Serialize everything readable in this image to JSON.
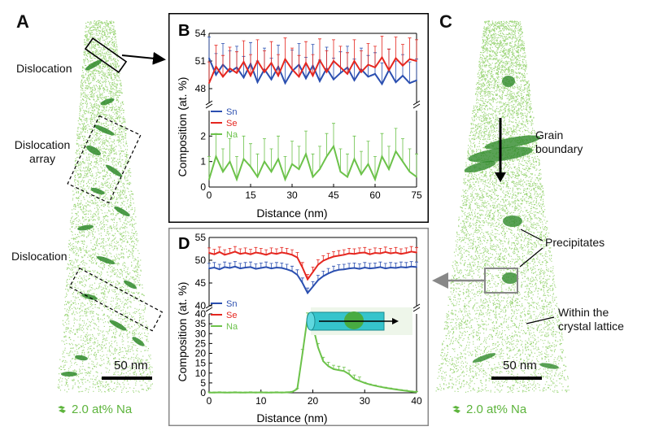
{
  "colors": {
    "sn": "#2b4fb0",
    "se": "#e5261f",
    "na": "#6cc24a",
    "atom": "#8dcf64",
    "dark": "#2f8a2a",
    "border": "#888888"
  },
  "panelA": {
    "letter": "A",
    "ann_dislocation_top": "Dislocation",
    "ann_array_1": "Dislocation",
    "ann_array_2": "array",
    "ann_dislocation_bottom": "Dislocation",
    "scalebar": "50 nm",
    "legend": "2.0 at% Na"
  },
  "panelC": {
    "letter": "C",
    "ann_gb_1": "Grain",
    "ann_gb_2": "boundary",
    "ann_precip": "Precipitates",
    "ann_lattice_1": "Within the",
    "ann_lattice_2": "crystal lattice",
    "scalebar": "50 nm",
    "legend": "2.0 at% Na"
  },
  "chart_data": [
    {
      "type": "line",
      "panel": "B",
      "ylabel": "Composition (at. %)",
      "xlabel": "Distance (nm)",
      "xlim": [
        0,
        75
      ],
      "xticks": [
        "0",
        "15",
        "30",
        "45",
        "60",
        "75"
      ],
      "upper": {
        "ylim": [
          46.5,
          54
        ],
        "yticks": [
          "48",
          "51",
          "54"
        ]
      },
      "lower": {
        "ylim": [
          0,
          3
        ],
        "yticks": [
          "0",
          "1",
          "2"
        ]
      },
      "legend": [
        "Sn",
        "Se",
        "Na"
      ],
      "x": [
        0,
        2.5,
        5,
        7.5,
        10,
        12.5,
        15,
        17.5,
        20,
        22.5,
        25,
        27.5,
        30,
        32.5,
        35,
        37.5,
        40,
        42.5,
        45,
        47.5,
        50,
        52.5,
        55,
        57.5,
        60,
        62.5,
        65,
        67.5,
        70,
        72.5,
        75
      ],
      "series": [
        {
          "name": "Sn",
          "values": [
            51.3,
            49.5,
            50.6,
            49.8,
            50.3,
            49.2,
            50.7,
            48.7,
            50.1,
            49.0,
            50.4,
            48.6,
            49.9,
            50.6,
            49.1,
            50.5,
            48.8,
            50.2,
            49.0,
            49.7,
            50.3,
            48.9,
            50.1,
            49.3,
            49.6,
            48.5,
            50.0,
            48.7,
            49.4,
            48.6,
            48.9
          ]
        },
        {
          "name": "Se",
          "values": [
            48.6,
            50.4,
            49.3,
            50.2,
            49.7,
            50.9,
            49.4,
            51.0,
            49.8,
            50.8,
            49.4,
            51.2,
            50.1,
            49.3,
            50.8,
            49.4,
            51.1,
            49.8,
            51.0,
            50.3,
            49.6,
            51.0,
            49.8,
            50.6,
            50.3,
            51.4,
            50.0,
            51.3,
            50.5,
            51.2,
            51.0
          ]
        },
        {
          "name": "Na",
          "values": [
            0.3,
            1.2,
            0.6,
            1.0,
            0.3,
            1.1,
            0.8,
            0.4,
            1.0,
            0.6,
            1.1,
            0.3,
            0.9,
            0.7,
            1.3,
            0.4,
            0.7,
            1.2,
            1.6,
            0.6,
            0.4,
            1.1,
            0.5,
            0.9,
            0.3,
            1.2,
            0.7,
            1.4,
            1.0,
            0.6,
            0.4
          ]
        }
      ]
    },
    {
      "type": "line",
      "panel": "D",
      "ylabel": "Composition (at. %)",
      "xlabel": "Distance (nm)",
      "xlim": [
        0,
        40
      ],
      "xticks": [
        "0",
        "10",
        "20",
        "30",
        "40"
      ],
      "upper": {
        "ylim": [
          40,
          55
        ],
        "yticks": [
          "40",
          "45",
          "50",
          "55"
        ]
      },
      "lower": {
        "ylim": [
          0,
          40
        ],
        "yticks": [
          "0",
          "5",
          "10",
          "15",
          "20",
          "25",
          "30",
          "35",
          "40"
        ]
      },
      "legend": [
        "Sn",
        "Se",
        "Na"
      ],
      "x": [
        0,
        1,
        2,
        3,
        4,
        5,
        6,
        7,
        8,
        9,
        10,
        11,
        12,
        13,
        14,
        15,
        16,
        17,
        18,
        19,
        20,
        21,
        22,
        23,
        24,
        25,
        26,
        27,
        28,
        29,
        30,
        31,
        32,
        33,
        34,
        35,
        36,
        37,
        38,
        39,
        40
      ],
      "series": [
        {
          "name": "Sn",
          "values": [
            48.2,
            48.4,
            48.0,
            48.5,
            48.3,
            48.6,
            48.2,
            48.4,
            48.5,
            48.1,
            48.3,
            48.5,
            48.2,
            48.4,
            48.3,
            48.0,
            47.6,
            46.8,
            45.0,
            42.8,
            44.2,
            45.6,
            46.5,
            47.1,
            47.6,
            47.9,
            48.0,
            48.2,
            48.3,
            48.1,
            48.4,
            48.2,
            48.3,
            48.5,
            48.2,
            48.4,
            48.3,
            48.5,
            48.4,
            48.6,
            48.5
          ]
        },
        {
          "name": "Se",
          "values": [
            51.6,
            51.3,
            51.8,
            51.2,
            51.5,
            51.9,
            51.4,
            51.6,
            51.3,
            51.7,
            51.5,
            51.2,
            51.6,
            51.4,
            51.7,
            51.5,
            51.2,
            50.6,
            48.4,
            45.8,
            47.4,
            49.0,
            49.9,
            50.4,
            50.8,
            51.0,
            51.2,
            51.5,
            51.4,
            51.6,
            51.7,
            51.3,
            51.6,
            51.5,
            51.8,
            51.5,
            51.7,
            51.4,
            51.6,
            51.9,
            51.7
          ]
        },
        {
          "name": "Na",
          "values": [
            0.1,
            0.1,
            0.2,
            0.1,
            0.1,
            0.2,
            0.1,
            0.1,
            0.2,
            0.1,
            0.2,
            0.1,
            0.1,
            0.2,
            0.1,
            0.2,
            0.4,
            2.0,
            20.0,
            38.5,
            34.0,
            23.0,
            16.0,
            13.5,
            12.0,
            11.5,
            11.0,
            9.5,
            7.0,
            6.0,
            5.0,
            4.2,
            3.6,
            3.0,
            2.5,
            2.1,
            1.7,
            1.3,
            1.0,
            0.6,
            0.4
          ]
        }
      ]
    }
  ]
}
